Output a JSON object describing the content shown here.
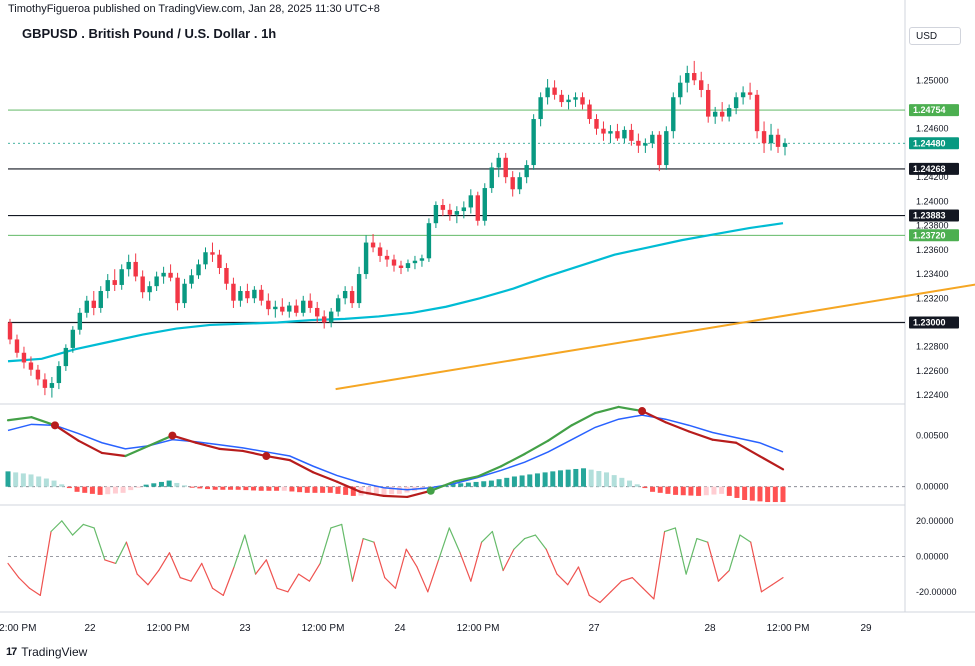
{
  "header": {
    "credit": "TimothyFigueroa published on TradingView.com, Jan 28, 2025 11:30 UTC+8",
    "title": "GBPUSD . British Pound / U.S. Dollar . 1h",
    "currency": "USD"
  },
  "footer": {
    "brand": "TradingView"
  },
  "chart_data": [
    {
      "type": "candlestick",
      "title": "GBPUSD . British Pound / U.S. Dollar . 1h",
      "price_axis_ticks": [
        "1.25000",
        "1.24600",
        "1.24200",
        "1.24000",
        "1.23600",
        "1.23400",
        "1.23200",
        "1.22800",
        "1.22600",
        "1.22400"
      ],
      "time_axis_ticks": [
        "12:00 PM",
        "22",
        "12:00 PM",
        "23",
        "12:00 PM",
        "24",
        "12:00 PM",
        "27",
        "28",
        "12:00 PM",
        "29"
      ],
      "ylim": [
        1.2236,
        1.2525
      ],
      "candles": [
        [
          1.23,
          1.2303,
          1.2282,
          1.2286
        ],
        [
          1.2286,
          1.229,
          1.2271,
          1.2275
        ],
        [
          1.2275,
          1.228,
          1.2262,
          1.2267
        ],
        [
          1.2267,
          1.2272,
          1.2256,
          1.2261
        ],
        [
          1.2261,
          1.2265,
          1.2248,
          1.2253
        ],
        [
          1.2253,
          1.2258,
          1.224,
          1.2246
        ],
        [
          1.2246,
          1.2255,
          1.2238,
          1.225
        ],
        [
          1.225,
          1.2268,
          1.2245,
          1.2264
        ],
        [
          1.2264,
          1.2282,
          1.226,
          1.2279
        ],
        [
          1.2279,
          1.2297,
          1.2275,
          1.2294
        ],
        [
          1.2294,
          1.2312,
          1.229,
          1.2308
        ],
        [
          1.2308,
          1.2322,
          1.2304,
          1.2318
        ],
        [
          1.2318,
          1.2326,
          1.2306,
          1.2312
        ],
        [
          1.2312,
          1.233,
          1.2308,
          1.2326
        ],
        [
          1.2326,
          1.234,
          1.232,
          1.2335
        ],
        [
          1.2335,
          1.2344,
          1.2326,
          1.2331
        ],
        [
          1.2331,
          1.2348,
          1.2327,
          1.2344
        ],
        [
          1.2344,
          1.2356,
          1.2338,
          1.235
        ],
        [
          1.235,
          1.2357,
          1.2334,
          1.2338
        ],
        [
          1.2338,
          1.2343,
          1.232,
          1.2325
        ],
        [
          1.2325,
          1.2334,
          1.2318,
          1.233
        ],
        [
          1.233,
          1.2342,
          1.2326,
          1.2338
        ],
        [
          1.2338,
          1.2346,
          1.2332,
          1.2341
        ],
        [
          1.2341,
          1.2348,
          1.2334,
          1.2337
        ],
        [
          1.2337,
          1.2341,
          1.231,
          1.2316
        ],
        [
          1.2316,
          1.2336,
          1.2312,
          1.2332
        ],
        [
          1.2332,
          1.2344,
          1.2328,
          1.2339
        ],
        [
          1.2339,
          1.2352,
          1.2336,
          1.2348
        ],
        [
          1.2348,
          1.2362,
          1.2344,
          1.2358
        ],
        [
          1.2358,
          1.2366,
          1.235,
          1.2356
        ],
        [
          1.2356,
          1.236,
          1.234,
          1.2345
        ],
        [
          1.2345,
          1.2349,
          1.2327,
          1.2332
        ],
        [
          1.2332,
          1.2337,
          1.2312,
          1.2318
        ],
        [
          1.2318,
          1.233,
          1.2313,
          1.2326
        ],
        [
          1.2326,
          1.2332,
          1.2316,
          1.232
        ],
        [
          1.232,
          1.233,
          1.2316,
          1.2327
        ],
        [
          1.2327,
          1.2331,
          1.2314,
          1.2318
        ],
        [
          1.2318,
          1.2324,
          1.2306,
          1.2311
        ],
        [
          1.2311,
          1.2318,
          1.2304,
          1.2313
        ],
        [
          1.2313,
          1.232,
          1.2306,
          1.2309
        ],
        [
          1.2309,
          1.2317,
          1.2304,
          1.2314
        ],
        [
          1.2314,
          1.2319,
          1.2305,
          1.2308
        ],
        [
          1.2308,
          1.2322,
          1.2305,
          1.2318
        ],
        [
          1.2318,
          1.2324,
          1.2308,
          1.2312
        ],
        [
          1.2312,
          1.2317,
          1.23,
          1.2305
        ],
        [
          1.2305,
          1.231,
          1.2295,
          1.23
        ],
        [
          1.23,
          1.2312,
          1.2296,
          1.2309
        ],
        [
          1.2309,
          1.2323,
          1.2305,
          1.232
        ],
        [
          1.232,
          1.233,
          1.2315,
          1.2326
        ],
        [
          1.2326,
          1.233,
          1.2312,
          1.2316
        ],
        [
          1.2316,
          1.2346,
          1.2312,
          1.234
        ],
        [
          1.234,
          1.2372,
          1.2336,
          1.2366
        ],
        [
          1.2366,
          1.2373,
          1.2358,
          1.2362
        ],
        [
          1.2362,
          1.2366,
          1.235,
          1.2355
        ],
        [
          1.2355,
          1.236,
          1.2346,
          1.2352
        ],
        [
          1.2352,
          1.2356,
          1.2342,
          1.2347
        ],
        [
          1.2347,
          1.2351,
          1.234,
          1.2345
        ],
        [
          1.2345,
          1.2352,
          1.2342,
          1.2349
        ],
        [
          1.2349,
          1.2355,
          1.2344,
          1.2351
        ],
        [
          1.2351,
          1.2356,
          1.2346,
          1.2353
        ],
        [
          1.2353,
          1.2386,
          1.235,
          1.2382
        ],
        [
          1.2382,
          1.24,
          1.2378,
          1.2397
        ],
        [
          1.2397,
          1.2402,
          1.2388,
          1.2393
        ],
        [
          1.2393,
          1.2398,
          1.2384,
          1.2389
        ],
        [
          1.2389,
          1.2396,
          1.2382,
          1.2392
        ],
        [
          1.2392,
          1.24,
          1.2386,
          1.2395
        ],
        [
          1.2395,
          1.241,
          1.239,
          1.2405
        ],
        [
          1.2405,
          1.2408,
          1.238,
          1.2384
        ],
        [
          1.2384,
          1.2415,
          1.238,
          1.2411
        ],
        [
          1.2411,
          1.2432,
          1.2407,
          1.2428
        ],
        [
          1.2428,
          1.244,
          1.242,
          1.2436
        ],
        [
          1.2436,
          1.244,
          1.2415,
          1.242
        ],
        [
          1.242,
          1.2425,
          1.2404,
          1.241
        ],
        [
          1.241,
          1.2424,
          1.2406,
          1.242
        ],
        [
          1.242,
          1.2434,
          1.2415,
          1.243
        ],
        [
          1.243,
          1.2472,
          1.2426,
          1.2468
        ],
        [
          1.2468,
          1.249,
          1.2462,
          1.2486
        ],
        [
          1.2486,
          1.2501,
          1.248,
          1.2494
        ],
        [
          1.2494,
          1.25,
          1.2484,
          1.2488
        ],
        [
          1.2488,
          1.2492,
          1.2478,
          1.2482
        ],
        [
          1.2482,
          1.2488,
          1.2476,
          1.2484
        ],
        [
          1.2484,
          1.249,
          1.2478,
          1.2486
        ],
        [
          1.2486,
          1.249,
          1.2476,
          1.248
        ],
        [
          1.248,
          1.2484,
          1.2464,
          1.2468
        ],
        [
          1.2468,
          1.2472,
          1.2455,
          1.246
        ],
        [
          1.246,
          1.2466,
          1.245,
          1.2456
        ],
        [
          1.2456,
          1.2463,
          1.2448,
          1.2458
        ],
        [
          1.2458,
          1.2464,
          1.245,
          1.2452
        ],
        [
          1.2452,
          1.2462,
          1.2448,
          1.2459
        ],
        [
          1.2459,
          1.2464,
          1.2446,
          1.245
        ],
        [
          1.245,
          1.2456,
          1.244,
          1.2446
        ],
        [
          1.2446,
          1.2452,
          1.244,
          1.2448
        ],
        [
          1.2448,
          1.2458,
          1.2444,
          1.2455
        ],
        [
          1.2455,
          1.2458,
          1.2425,
          1.243
        ],
        [
          1.243,
          1.2462,
          1.2426,
          1.2458
        ],
        [
          1.2458,
          1.249,
          1.2452,
          1.2486
        ],
        [
          1.2486,
          1.2504,
          1.248,
          1.2498
        ],
        [
          1.2498,
          1.2512,
          1.249,
          1.2506
        ],
        [
          1.2506,
          1.2516,
          1.2496,
          1.25
        ],
        [
          1.25,
          1.2507,
          1.2486,
          1.2492
        ],
        [
          1.2492,
          1.2497,
          1.2465,
          1.247
        ],
        [
          1.247,
          1.2478,
          1.2464,
          1.2474
        ],
        [
          1.2474,
          1.2482,
          1.2466,
          1.247
        ],
        [
          1.247,
          1.248,
          1.2466,
          1.2477
        ],
        [
          1.2477,
          1.249,
          1.2472,
          1.2486
        ],
        [
          1.2486,
          1.2495,
          1.248,
          1.249
        ],
        [
          1.249,
          1.2498,
          1.2484,
          1.2488
        ],
        [
          1.2488,
          1.2492,
          1.2452,
          1.2458
        ],
        [
          1.2458,
          1.2466,
          1.244,
          1.2448
        ],
        [
          1.2448,
          1.2464,
          1.2442,
          1.2455
        ],
        [
          1.2455,
          1.246,
          1.244,
          1.2445
        ],
        [
          1.2445,
          1.2452,
          1.2438,
          1.2448
        ]
      ],
      "ema_series": [
        [
          0,
          1.2268
        ],
        [
          10,
          1.227
        ],
        [
          20,
          1.2278
        ],
        [
          30,
          1.2284
        ],
        [
          40,
          1.229
        ],
        [
          50,
          1.2295
        ],
        [
          60,
          1.2298
        ],
        [
          70,
          1.2299
        ],
        [
          80,
          1.23
        ],
        [
          90,
          1.2302
        ],
        [
          100,
          1.2303
        ],
        [
          110,
          1.2305
        ],
        [
          120,
          1.2308
        ],
        [
          130,
          1.2313
        ],
        [
          140,
          1.232
        ],
        [
          150,
          1.2328
        ],
        [
          160,
          1.2338
        ],
        [
          170,
          1.2347
        ],
        [
          180,
          1.2356
        ],
        [
          190,
          1.2362
        ],
        [
          200,
          1.2368
        ],
        [
          210,
          1.2373
        ],
        [
          220,
          1.2378
        ],
        [
          230,
          1.2382
        ]
      ],
      "horizontal_levels": [
        {
          "price": 1.24754,
          "label": "1.24754",
          "style": "green"
        },
        {
          "price": 1.2448,
          "label": "1.24480",
          "style": "current"
        },
        {
          "price": 1.24268,
          "label": "1.24268",
          "style": "black"
        },
        {
          "price": 1.23883,
          "label": "1.23883",
          "style": "black"
        },
        {
          "price": 1.2372,
          "label": "1.23720",
          "style": "green"
        },
        {
          "price": 1.23,
          "label": "1.23000",
          "style": "black"
        }
      ],
      "trendline": {
        "from": [
          50,
          1.2245
        ],
        "to": [
          256,
          1.2426
        ]
      },
      "resistance_zone": {
        "from_x": 156,
        "to_x": 253,
        "price": 1.25
      },
      "hidden_tick": "1.23800"
    },
    {
      "type": "line",
      "name": "macd",
      "ticks": [
        "0.00500",
        "0.00000"
      ],
      "ylim": [
        -0.0013,
        0.0075
      ],
      "macd": [
        0.0065,
        0.0068,
        0.006,
        0.0045,
        0.0033,
        0.003,
        0.004,
        0.005,
        0.0043,
        0.0037,
        0.0035,
        0.003,
        0.0026,
        0.0014,
        0.0005,
        -0.0005,
        -0.0009,
        -0.001,
        -0.0004,
        0.0005,
        0.001,
        0.002,
        0.0032,
        0.0045,
        0.006,
        0.0072,
        0.0078,
        0.0074,
        0.0063,
        0.0054,
        0.0046,
        0.0043,
        0.003,
        0.0017
      ],
      "signal": [
        0.0055,
        0.0061,
        0.006,
        0.0052,
        0.0043,
        0.0037,
        0.004,
        0.0046,
        0.0044,
        0.0041,
        0.0038,
        0.0034,
        0.003,
        0.002,
        0.0011,
        0.0004,
        -0.0001,
        -0.0003,
        -0.0001,
        0.0003,
        0.0009,
        0.0016,
        0.0024,
        0.0034,
        0.0046,
        0.0058,
        0.0066,
        0.007,
        0.0066,
        0.006,
        0.0053,
        0.0048,
        0.0043,
        0.0034
      ],
      "cross_points": [
        2,
        7,
        11,
        18,
        27
      ],
      "histogram": [
        0.0015,
        0.0012,
        0.0006,
        -0.0005,
        -0.0008,
        -0.0006,
        0.0002,
        0.0006,
        -0.0001,
        -0.0003,
        -0.0003,
        -0.0004,
        -0.0004,
        -0.0006,
        -0.0006,
        -0.0009,
        -0.0008,
        -0.0007,
        -0.0003,
        0.0002,
        0.0004,
        0.0006,
        0.001,
        0.0013,
        0.0016,
        0.0018,
        0.0014,
        0.0006,
        -0.0005,
        -0.0008,
        -0.0009,
        -0.0007,
        -0.0013,
        -0.0015
      ]
    },
    {
      "type": "line",
      "name": "oscillator",
      "ticks": [
        "20.00000",
        "0.00000",
        "-20.00000"
      ],
      "ylim": [
        -28,
        25
      ],
      "values": [
        -4,
        -12,
        -18,
        -22,
        14,
        20,
        12,
        18,
        16,
        -2,
        -4,
        8,
        -10,
        -16,
        -8,
        2,
        -12,
        -14,
        -4,
        -18,
        -22,
        -6,
        12,
        -10,
        -2,
        -18,
        -20,
        -10,
        -14,
        -4,
        16,
        18,
        -14,
        10,
        8,
        -12,
        -18,
        4,
        -6,
        -20,
        -2,
        16,
        2,
        -14,
        8,
        14,
        -8,
        4,
        10,
        12,
        4,
        -10,
        -16,
        -6,
        -22,
        -26,
        -20,
        -14,
        -12,
        -18,
        -24,
        14,
        16,
        -10,
        10,
        8,
        -14,
        -8,
        12,
        8,
        -20,
        -16,
        -12
      ]
    }
  ]
}
